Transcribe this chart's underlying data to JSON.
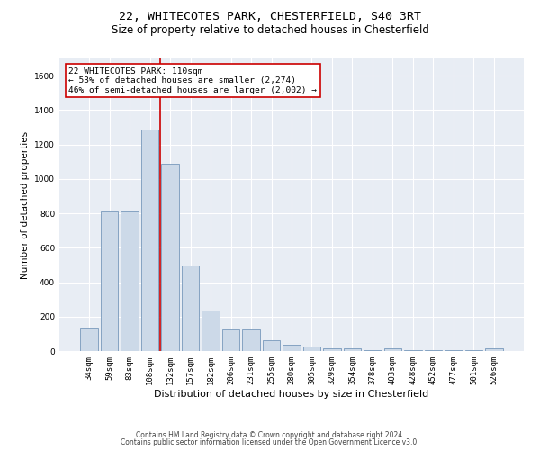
{
  "title1": "22, WHITECOTES PARK, CHESTERFIELD, S40 3RT",
  "title2": "Size of property relative to detached houses in Chesterfield",
  "xlabel": "Distribution of detached houses by size in Chesterfield",
  "ylabel": "Number of detached properties",
  "footer1": "Contains HM Land Registry data © Crown copyright and database right 2024.",
  "footer2": "Contains public sector information licensed under the Open Government Licence v3.0.",
  "annotation_line1": "22 WHITECOTES PARK: 110sqm",
  "annotation_line2": "← 53% of detached houses are smaller (2,274)",
  "annotation_line3": "46% of semi-detached houses are larger (2,002) →",
  "bar_labels": [
    "34sqm",
    "59sqm",
    "83sqm",
    "108sqm",
    "132sqm",
    "157sqm",
    "182sqm",
    "206sqm",
    "231sqm",
    "255sqm",
    "280sqm",
    "305sqm",
    "329sqm",
    "354sqm",
    "378sqm",
    "403sqm",
    "428sqm",
    "452sqm",
    "477sqm",
    "501sqm",
    "526sqm"
  ],
  "bar_values": [
    135,
    810,
    810,
    1285,
    1090,
    495,
    238,
    128,
    128,
    65,
    38,
    28,
    15,
    15,
    3,
    15,
    3,
    3,
    3,
    3,
    15
  ],
  "bar_color": "#ccd9e8",
  "bar_edge_color": "#7799bb",
  "red_line_x": 3.5,
  "ylim": [
    0,
    1700
  ],
  "yticks": [
    0,
    200,
    400,
    600,
    800,
    1000,
    1200,
    1400,
    1600
  ],
  "bg_color": "#e8edf4",
  "grid_color": "#ffffff",
  "annotation_box_color": "#ffffff",
  "annotation_box_edge": "#cc0000",
  "red_line_color": "#cc0000",
  "title_fontsize": 9.5,
  "subtitle_fontsize": 8.5,
  "tick_fontsize": 6.5,
  "ylabel_fontsize": 7.5,
  "xlabel_fontsize": 8,
  "annotation_fontsize": 6.8,
  "footer_fontsize": 5.5
}
